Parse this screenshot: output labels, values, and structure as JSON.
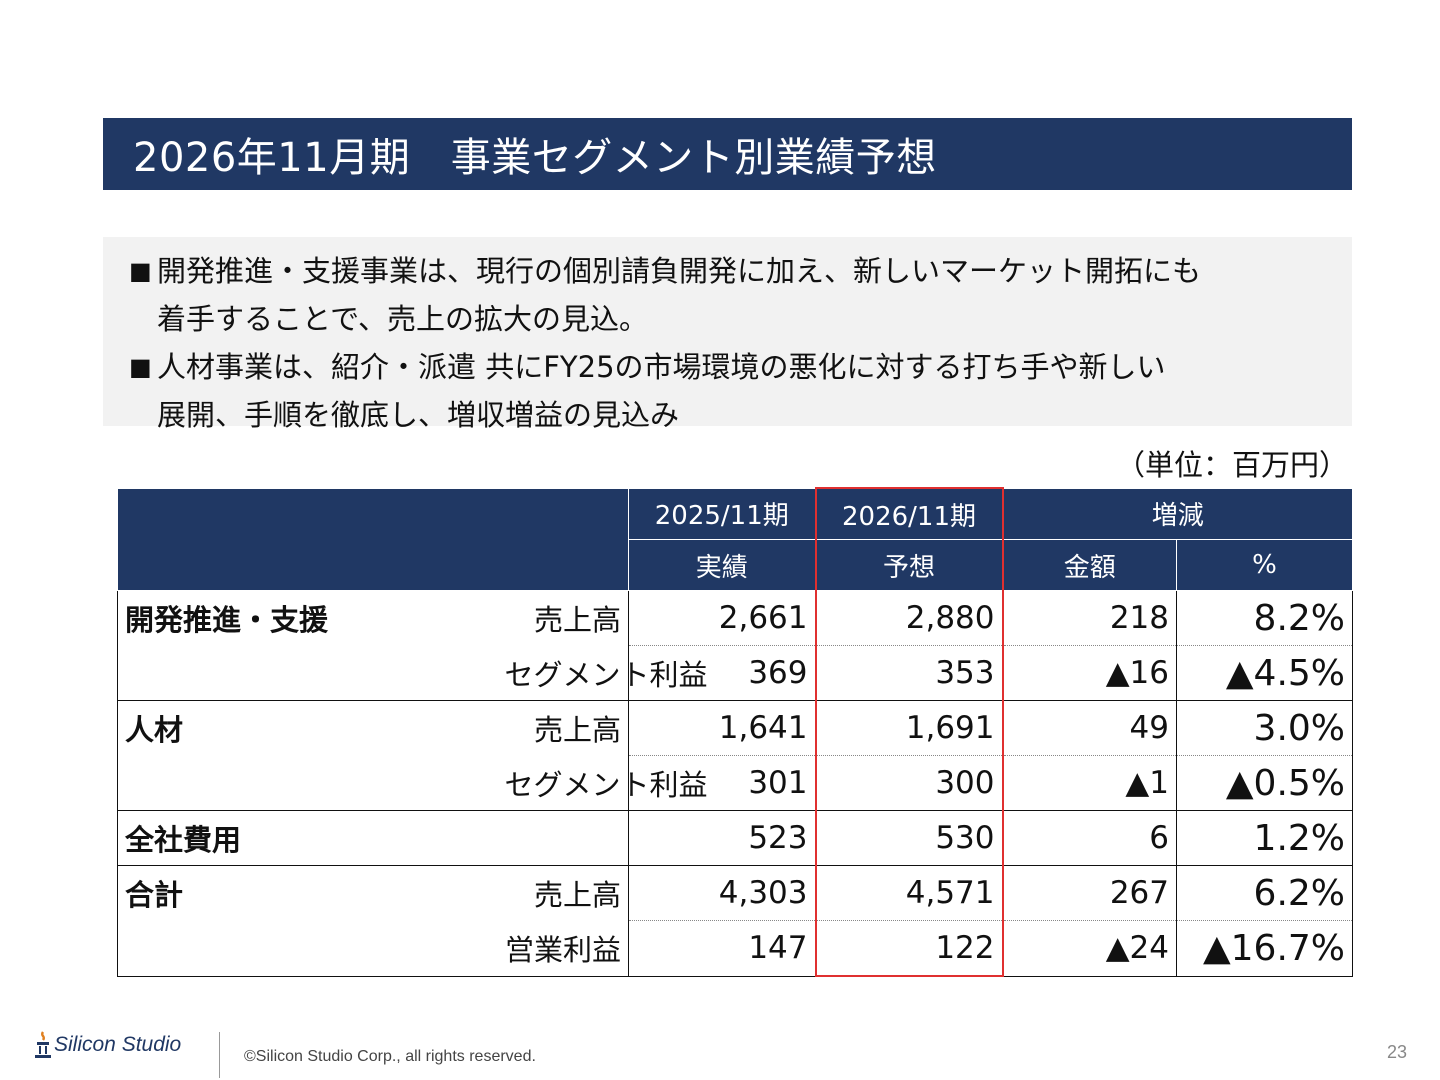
{
  "title": "2026年11月期　事業セグメント別業績予想",
  "summary": [
    {
      "mark": "■",
      "lines": [
        "開発推進・支援事業は、現行の個別請負開発に加え、新しいマーケット開拓にも",
        "着手することで、売上の拡大の見込。"
      ]
    },
    {
      "mark": "■",
      "lines": [
        "人材事業は、紹介・派遣 共にFY25の市場環境の悪化に対する打ち手や新しい",
        "展開、手順を徹底し、増収増益の見込み"
      ]
    }
  ],
  "unit": "（単位：百万円）",
  "table": {
    "header": {
      "col1_period": "2025/11期",
      "col2_period": "2026/11期",
      "col3_group": "増減",
      "col1_sub": "実績",
      "col2_sub": "予想",
      "col3_sub": "金額",
      "col4_sub": "%"
    },
    "rows": [
      {
        "segment": "開発推進・支援",
        "item": "売上高",
        "fy25": "2,661",
        "fy26": "2,880",
        "diff": "218",
        "pct": "8.2%"
      },
      {
        "segment": "",
        "item": "セグメント利益",
        "fy25": "369",
        "fy26": "353",
        "diff": "▲16",
        "pct": "▲4.5%"
      },
      {
        "segment": "人材",
        "item": "売上高",
        "fy25": "1,641",
        "fy26": "1,691",
        "diff": "49",
        "pct": "3.0%"
      },
      {
        "segment": "",
        "item": "セグメント利益",
        "fy25": "301",
        "fy26": "300",
        "diff": "▲1",
        "pct": "▲0.5%"
      },
      {
        "segment": "全社費用",
        "item": "",
        "fy25": "523",
        "fy26": "530",
        "diff": "6",
        "pct": "1.2%"
      },
      {
        "segment": "合計",
        "item": "売上高",
        "fy25": "4,303",
        "fy26": "4,571",
        "diff": "267",
        "pct": "6.2%"
      },
      {
        "segment": "",
        "item": "営業利益",
        "fy25": "147",
        "fy26": "122",
        "diff": "▲24",
        "pct": "▲16.7%"
      }
    ]
  },
  "footer": {
    "logo_text": "Silicon Studio",
    "copyright": "©Silicon Studio Corp., all rights reserved.",
    "page": "23"
  },
  "colors": {
    "header_bg": "#203864",
    "highlight": "#e03030",
    "summary_bg": "#f2f2f2"
  }
}
